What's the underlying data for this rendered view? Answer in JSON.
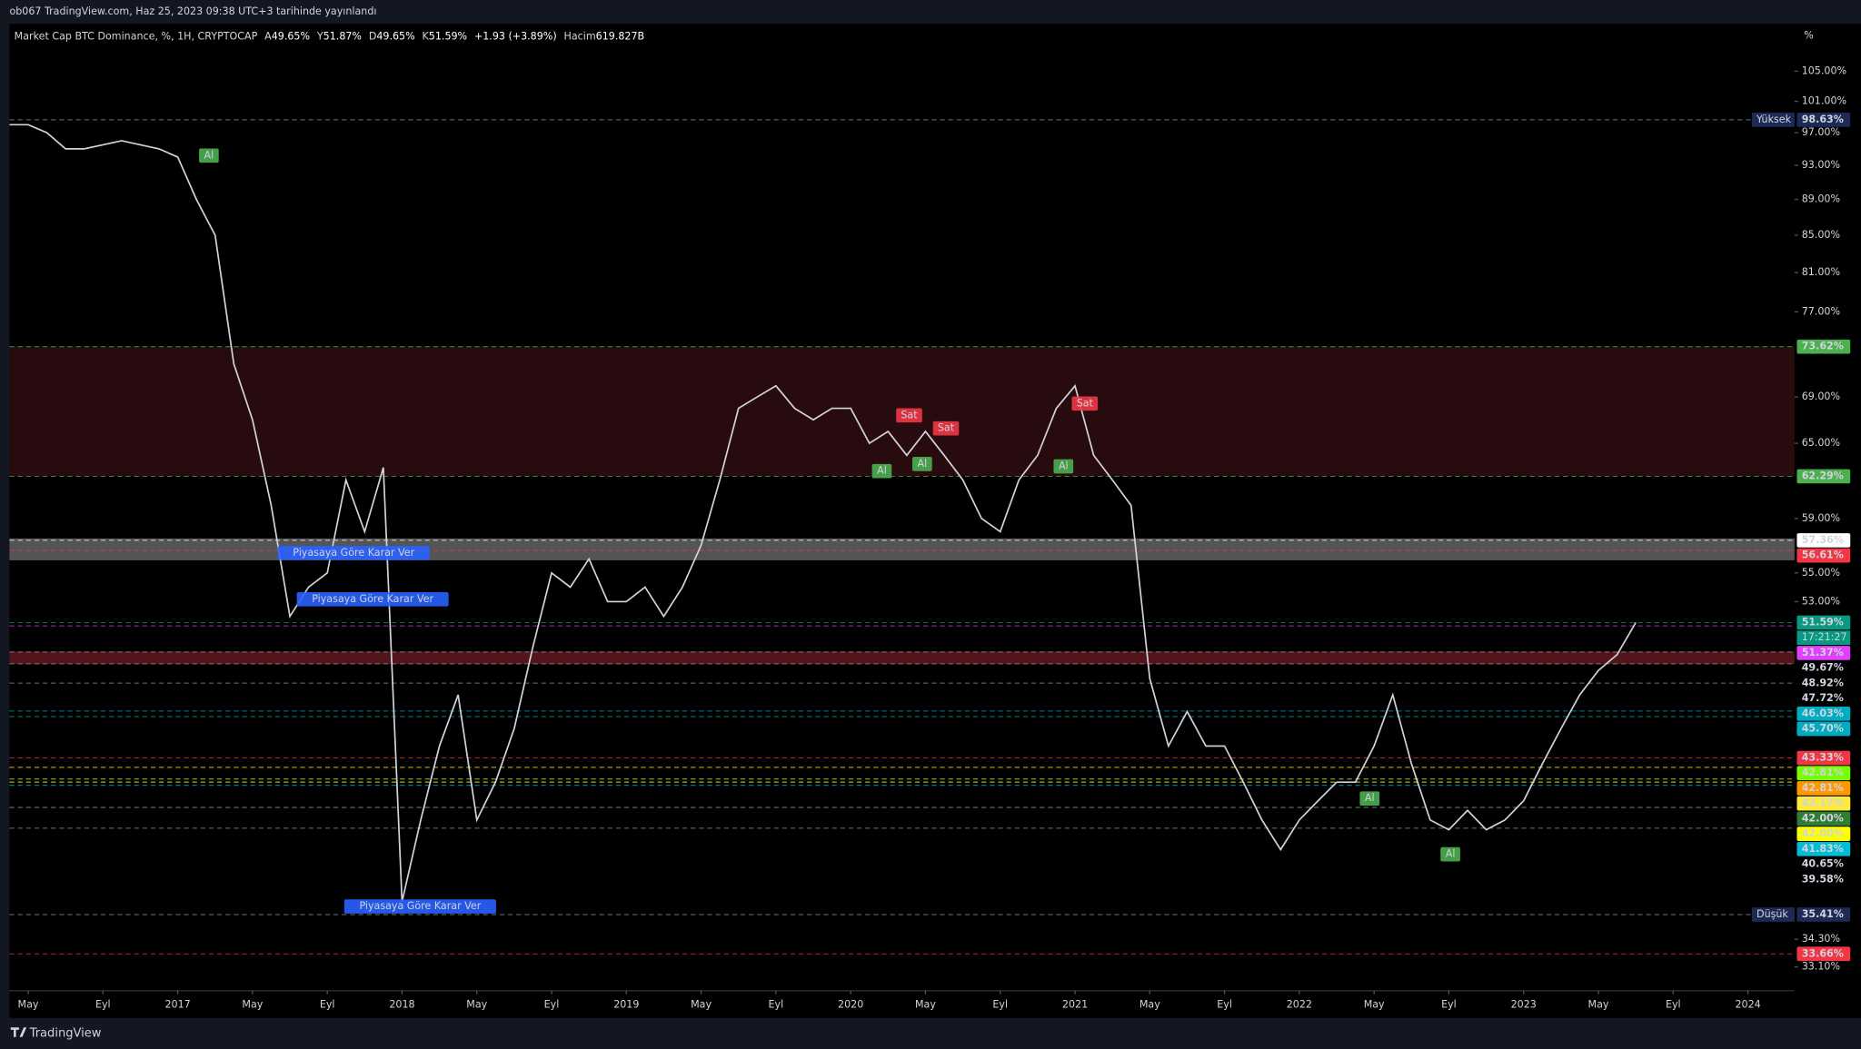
{
  "header": {
    "published": "ob067 TradingView.com, Haz 25, 2023 09:38 UTC+3 tarihinde yayınlandı",
    "brand": "TradingView"
  },
  "legend": {
    "symbol": "Market Cap BTC Dominance, %, 1H, CRYPTOCAP",
    "fields": [
      {
        "key": "A",
        "value": "49.65%"
      },
      {
        "key": "Y",
        "value": "51.87%"
      },
      {
        "key": "D",
        "value": "49.65%"
      },
      {
        "key": "K",
        "value": "51.59%"
      }
    ],
    "change": "+1.93 (+3.89%)",
    "volume_key": "Hacim",
    "volume": "619.827B"
  },
  "chart_data": {
    "type": "line",
    "unit": "%",
    "log_scale": true,
    "categories": [
      null,
      "May",
      null,
      null,
      null,
      "Eyl",
      null,
      null,
      null,
      "2017",
      null,
      null,
      null,
      "May",
      null,
      null,
      null,
      "Eyl",
      null,
      null,
      null,
      "2018",
      null,
      null,
      null,
      "May",
      null,
      null,
      null,
      "Eyl",
      null,
      null,
      null,
      "2019",
      null,
      null,
      null,
      "May",
      null,
      null,
      null,
      "Eyl",
      null,
      null,
      null,
      "2020",
      null,
      null,
      null,
      "May",
      null,
      null,
      null,
      "Eyl",
      null,
      null,
      null,
      "2021",
      null,
      null,
      null,
      "May",
      null,
      null,
      null,
      "Eyl",
      null,
      null,
      null,
      "2022",
      null,
      null,
      null,
      "May",
      null,
      null,
      null,
      "Eyl",
      null,
      null,
      null,
      "2023",
      null,
      null,
      null,
      "May",
      null,
      null,
      null,
      "Eyl",
      null,
      null,
      null,
      "2024",
      null,
      null
    ],
    "series": [
      {
        "name": "Market Cap BTC Dominance",
        "color": "#d1d4dc",
        "values": [
          98,
          98,
          97,
          95,
          95,
          95.5,
          96,
          95.5,
          95,
          94,
          89,
          85,
          72,
          67,
          60,
          52,
          54,
          55,
          62,
          58,
          63,
          36,
          40,
          44,
          47,
          40,
          42,
          45,
          50,
          55,
          54,
          56,
          53,
          53,
          54,
          52,
          54,
          57,
          62,
          68,
          69,
          70,
          68,
          67,
          68,
          68,
          65,
          66,
          64,
          66,
          64,
          62,
          59,
          58,
          62,
          64,
          68,
          70,
          64,
          62,
          60,
          48,
          44,
          46,
          44,
          44,
          42,
          40,
          38.5,
          40,
          41,
          42,
          42,
          44,
          47,
          43,
          40,
          39.5,
          40.5,
          39.5,
          40,
          41,
          43,
          45,
          47,
          48.5,
          49.5,
          51.59,
          null,
          null,
          null,
          null,
          null,
          null,
          null,
          null
        ]
      }
    ],
    "ylim": [
      32.1,
      111.6
    ],
    "yticks": [
      {
        "value": 105,
        "label": "105.00%"
      },
      {
        "value": 101,
        "label": "101.00%"
      },
      {
        "value": 97,
        "label": "97.00%"
      },
      {
        "value": 93,
        "label": "93.00%"
      },
      {
        "value": 89,
        "label": "89.00%"
      },
      {
        "value": 85,
        "label": "85.00%"
      },
      {
        "value": 81,
        "label": "81.00%"
      },
      {
        "value": 77,
        "label": "77.00%"
      },
      {
        "value": 69,
        "label": "69.00%"
      },
      {
        "value": 65,
        "label": "65.00%"
      },
      {
        "value": 59,
        "label": "59.00%"
      },
      {
        "value": 55,
        "label": "55.00%"
      },
      {
        "value": 53,
        "label": "53.00%"
      },
      {
        "value": 34.3,
        "label": "34.30%"
      },
      {
        "value": 33.1,
        "label": "33.10%"
      }
    ],
    "levels": [
      {
        "name": "Yüksek",
        "value": 98.63,
        "label": "98.63%",
        "color": "#1e2a55"
      },
      {
        "value": 73.62,
        "label": "73.62%",
        "color": "#4caf50"
      },
      {
        "value": 62.29,
        "label": "62.29%",
        "color": "#4caf50"
      },
      {
        "value": 57.36,
        "label": "57.36%",
        "color": "#ffffff"
      },
      {
        "value": 56.61,
        "label": "56.61%",
        "color": "#f23645"
      },
      {
        "value": 51.59,
        "label": "51.59%",
        "color": "#089981",
        "countdown": "17:21:27"
      },
      {
        "value": 51.37,
        "label": "51.37%",
        "color": "#e040fb"
      },
      {
        "value": 49.67,
        "label": "49.67%",
        "color": "#000000"
      },
      {
        "value": 48.92,
        "label": "48.92%",
        "color": "#000000"
      },
      {
        "value": 47.72,
        "label": "47.72%",
        "color": "#000000"
      },
      {
        "value": 46.03,
        "label": "46.03%",
        "color": "#00acc1"
      },
      {
        "value": 45.7,
        "label": "45.70%",
        "color": "#00acc1"
      },
      {
        "value": 43.33,
        "label": "43.33%",
        "color": "#f23645"
      },
      {
        "value": 42.81,
        "label": "42.81%",
        "color": "#76ff03"
      },
      {
        "value": 42.81,
        "label": "42.81%",
        "color": "#ff9800"
      },
      {
        "value": 42.17,
        "label": "42.17%",
        "color": "#ffeb3b"
      },
      {
        "value": 42,
        "label": "42.00%",
        "color": "#2e7d32"
      },
      {
        "value": 42,
        "label": "42.00%",
        "color": "#ffff00"
      },
      {
        "value": 41.83,
        "label": "41.83%",
        "color": "#00bcd4"
      },
      {
        "value": 40.65,
        "label": "40.65%",
        "color": "#000000"
      },
      {
        "value": 39.58,
        "label": "39.58%",
        "color": "#000000"
      },
      {
        "name": "Düşük",
        "value": 35.41,
        "label": "35.41%",
        "color": "#1e2a55"
      },
      {
        "value": 33.66,
        "label": "33.66%",
        "color": "#f23645"
      }
    ],
    "zones": [
      {
        "from": 62.29,
        "to": 73.62,
        "color": "#2b0c10"
      },
      {
        "from": 55.9,
        "to": 57.5,
        "color": "#5d5d5d"
      },
      {
        "from": 48.9,
        "to": 49.7,
        "color": "#5a171d"
      }
    ],
    "annotations": [
      {
        "text": "Al",
        "color": "#4caf50"
      },
      {
        "text": "Al",
        "color": "#4caf50"
      },
      {
        "text": "Al",
        "color": "#4caf50"
      },
      {
        "text": "Sat",
        "color": "#f23645"
      },
      {
        "text": "Sat",
        "color": "#f23645"
      },
      {
        "text": "Sat",
        "color": "#f23645"
      },
      {
        "text": "Al",
        "color": "#4caf50"
      },
      {
        "text": "Al",
        "color": "#4caf50"
      },
      {
        "text": "Al",
        "color": "#4caf50"
      },
      {
        "text": "Piyasaya Göre Karar Ver",
        "color": "#2962ff"
      },
      {
        "text": "Piyasaya Göre Karar Ver",
        "color": "#2962ff"
      },
      {
        "text": "Piyasaya Göre Karar Ver",
        "color": "#2962ff"
      }
    ]
  }
}
